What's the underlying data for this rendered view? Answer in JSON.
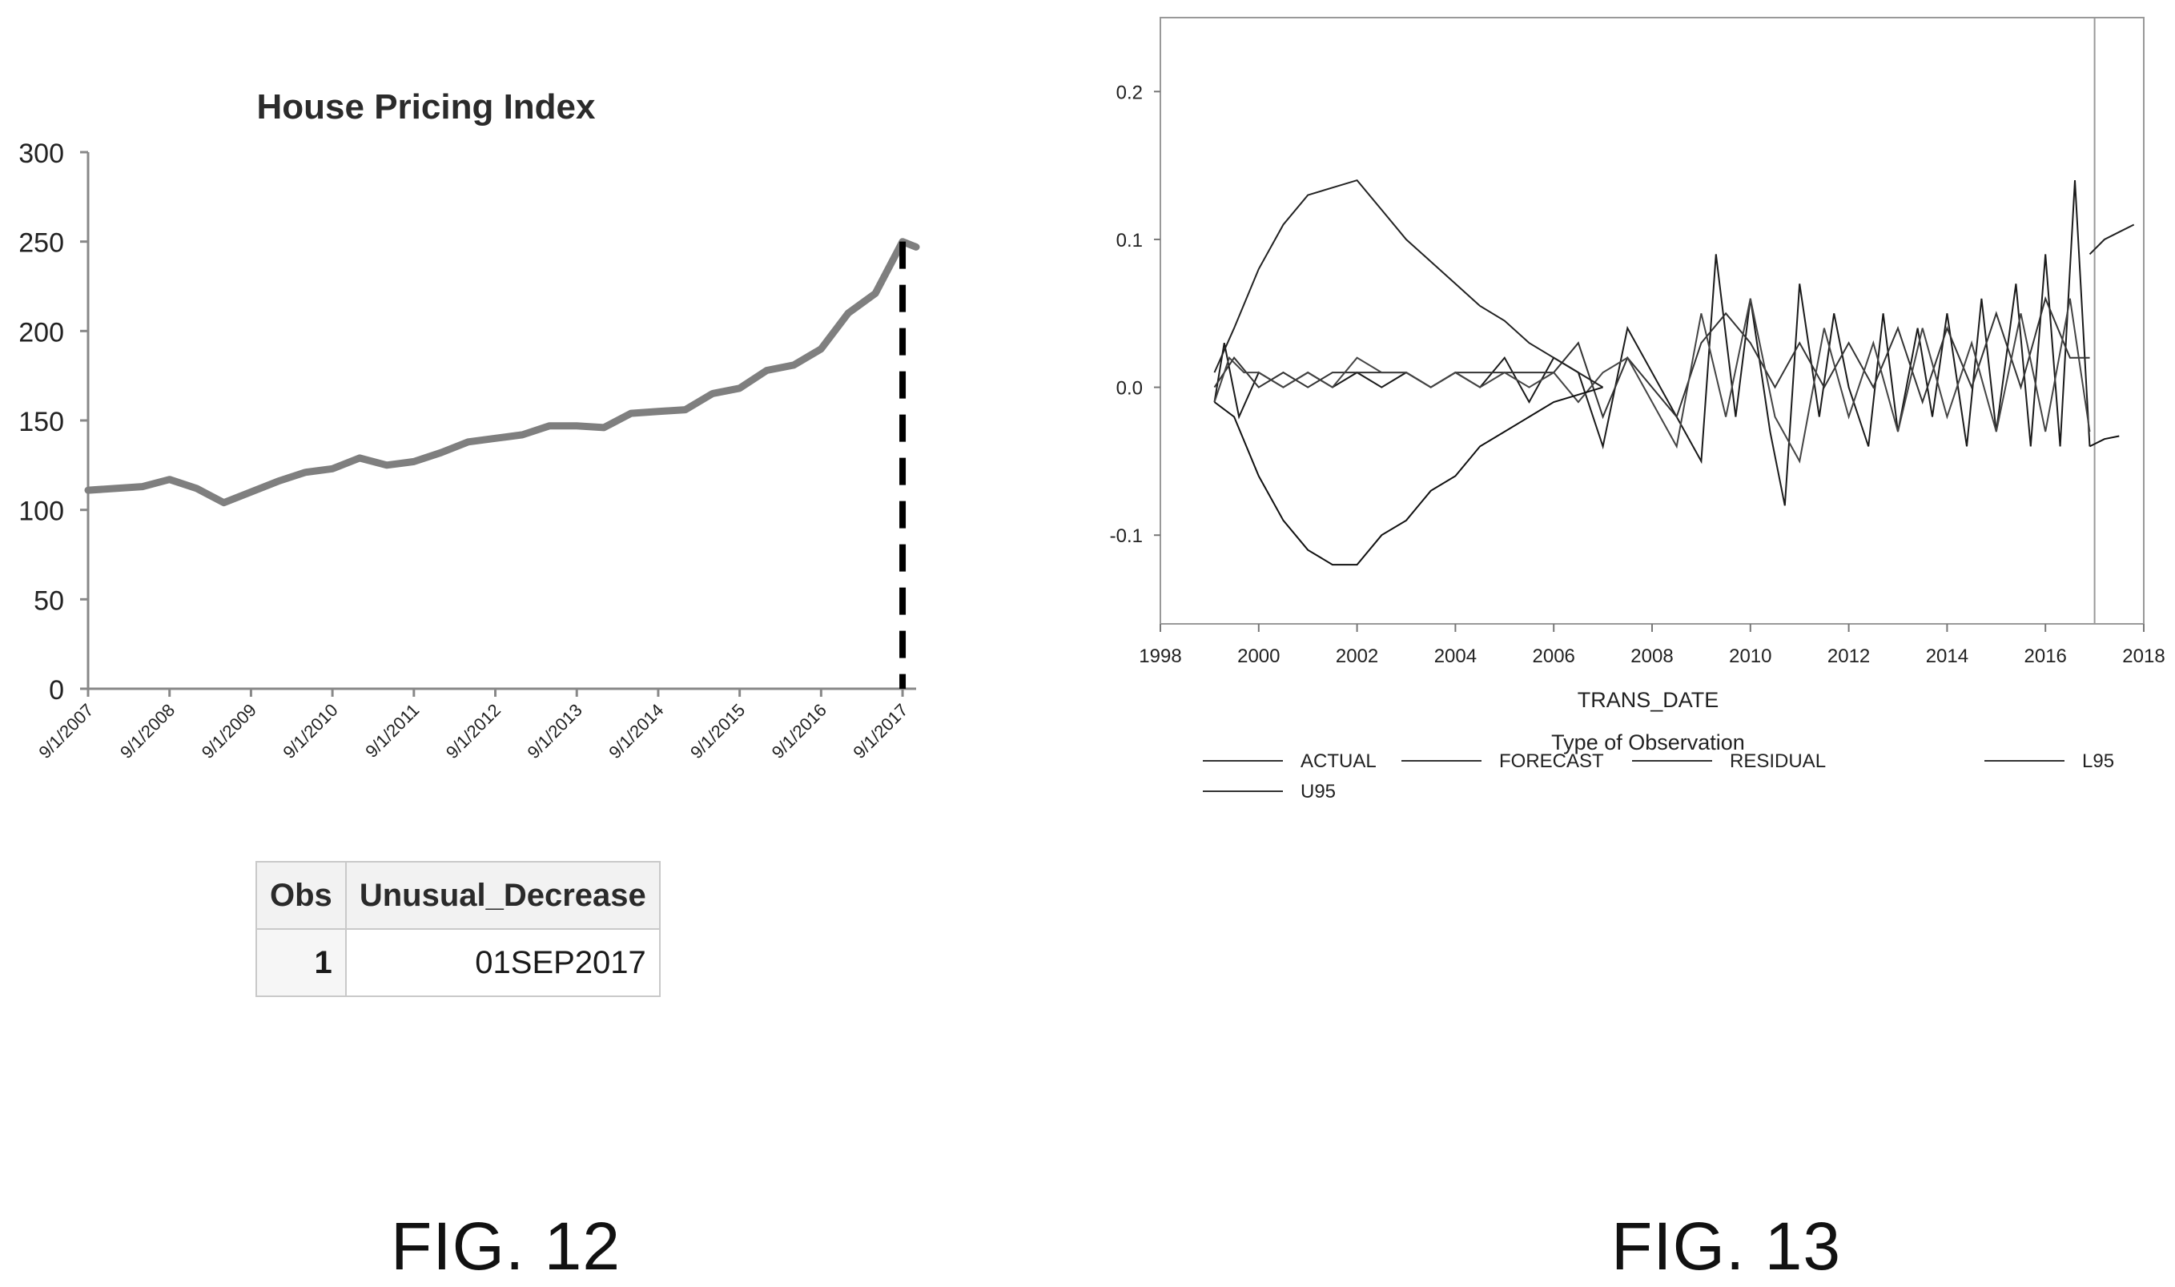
{
  "figures": {
    "fig12_caption": "FIG. 12",
    "fig13_caption": "FIG. 13"
  },
  "table": {
    "headers": [
      "Obs",
      "Unusual_Decrease"
    ],
    "rows": [
      [
        "1",
        "01SEP2017"
      ]
    ]
  },
  "chart_data": [
    {
      "type": "line",
      "title": "House Pricing Index",
      "xlabel": "",
      "ylabel": "",
      "ylim": [
        0,
        300
      ],
      "yticks": [
        "0",
        "50",
        "100",
        "150",
        "200",
        "250",
        "300"
      ],
      "xticks": [
        "9/1/2007",
        "9/1/2008",
        "9/1/2009",
        "9/1/2010",
        "9/1/2011",
        "9/1/2012",
        "9/1/2013",
        "9/1/2014",
        "9/1/2015",
        "9/1/2016",
        "9/1/2017"
      ],
      "x_range": [
        "2007-09-01",
        "2017-11-01"
      ],
      "marker": {
        "x": "2017-09-01",
        "style": "dashed",
        "color": "#000000"
      },
      "line_color": "#7f7f7f",
      "series": [
        {
          "x": [
            "2007-09",
            "2008-01",
            "2008-05",
            "2008-09",
            "2009-01",
            "2009-05",
            "2009-09",
            "2010-01",
            "2010-05",
            "2010-09",
            "2011-01",
            "2011-05",
            "2011-09",
            "2012-01",
            "2012-05",
            "2012-09",
            "2013-01",
            "2013-05",
            "2013-09",
            "2014-01",
            "2014-05",
            "2014-09",
            "2015-01",
            "2015-05",
            "2015-09",
            "2016-01",
            "2016-05",
            "2016-09",
            "2017-01",
            "2017-05",
            "2017-09",
            "2017-11"
          ],
          "values": [
            111,
            112,
            113,
            117,
            112,
            104,
            110,
            116,
            121,
            123,
            129,
            125,
            127,
            132,
            138,
            140,
            142,
            147,
            147,
            146,
            154,
            155,
            156,
            165,
            168,
            178,
            181,
            190,
            210,
            221,
            250,
            247
          ]
        }
      ]
    },
    {
      "type": "line",
      "title": "",
      "xlabel": "TRANS_DATE",
      "ylabel": "",
      "xlim": [
        1998,
        2018
      ],
      "ylim": [
        -0.16,
        0.25
      ],
      "xticks": [
        "1998",
        "2000",
        "2002",
        "2004",
        "2006",
        "2008",
        "2010",
        "2012",
        "2014",
        "2016",
        "2018"
      ],
      "yticks": [
        "-0.1",
        "0.0",
        "0.1",
        "0.2"
      ],
      "forecast_start": 2017.0,
      "legend_title": "Type of Observation",
      "legend_position": "bottom",
      "series": [
        {
          "name": "ACTUAL",
          "x": [
            1999.1,
            1999.3,
            1999.6,
            2000.0,
            2000.5,
            2001.0,
            2001.5,
            2002.0,
            2002.5,
            2003.0,
            2003.5,
            2004.0,
            2004.5,
            2005.0,
            2005.5,
            2006.0,
            2006.5,
            2007.0,
            2007.5,
            2008.0,
            2008.5,
            2009.0,
            2009.3,
            2009.7,
            2010.0,
            2010.4,
            2010.7,
            2011.0,
            2011.4,
            2011.7,
            2012.0,
            2012.4,
            2012.7,
            2013.0,
            2013.4,
            2013.7,
            2014.0,
            2014.4,
            2014.7,
            2015.0,
            2015.4,
            2015.7,
            2016.0,
            2016.3,
            2016.6,
            2016.9
          ],
          "values": [
            -0.01,
            0.03,
            -0.02,
            0.01,
            0.0,
            0.01,
            0.0,
            0.01,
            0.0,
            0.01,
            0.0,
            0.01,
            0.0,
            0.02,
            -0.01,
            0.02,
            0.01,
            -0.04,
            0.04,
            0.01,
            -0.02,
            -0.05,
            0.09,
            -0.02,
            0.06,
            -0.03,
            -0.08,
            0.07,
            -0.02,
            0.05,
            0.0,
            -0.04,
            0.05,
            -0.03,
            0.04,
            -0.02,
            0.05,
            -0.04,
            0.06,
            -0.03,
            0.07,
            -0.04,
            0.09,
            -0.04,
            0.14,
            -0.04
          ]
        },
        {
          "name": "FORECAST",
          "x": [
            1999.1,
            1999.5,
            2000.0,
            2000.5,
            2001.0,
            2001.5,
            2002.0,
            2002.5,
            2003.0,
            2003.5,
            2004.0,
            2004.5,
            2005.0,
            2005.5,
            2006.0,
            2006.5,
            2007.0,
            2007.5,
            2008.0,
            2008.5,
            2009.0,
            2009.5,
            2010.0,
            2010.5,
            2011.0,
            2011.5,
            2012.0,
            2012.5,
            2013.0,
            2013.5,
            2014.0,
            2014.5,
            2015.0,
            2015.5,
            2016.0,
            2016.5,
            2016.9
          ],
          "values": [
            0.0,
            0.02,
            0.0,
            0.01,
            0.0,
            0.01,
            0.01,
            0.01,
            0.01,
            0.0,
            0.01,
            0.01,
            0.01,
            0.01,
            0.01,
            0.03,
            -0.02,
            0.02,
            0.0,
            -0.02,
            0.03,
            0.05,
            0.03,
            0.0,
            0.03,
            0.0,
            0.03,
            0.0,
            0.04,
            -0.01,
            0.04,
            0.0,
            0.05,
            0.0,
            0.06,
            0.02,
            0.02
          ]
        },
        {
          "name": "RESIDUAL",
          "x": [
            1999.1,
            1999.4,
            1999.7,
            2000.0,
            2000.5,
            2001.0,
            2001.5,
            2002.0,
            2002.5,
            2003.0,
            2003.5,
            2004.0,
            2004.5,
            2005.0,
            2005.5,
            2006.0,
            2006.5,
            2007.0,
            2007.5,
            2008.0,
            2008.5,
            2009.0,
            2009.5,
            2010.0,
            2010.5,
            2011.0,
            2011.5,
            2012.0,
            2012.5,
            2013.0,
            2013.5,
            2014.0,
            2014.5,
            2015.0,
            2015.5,
            2016.0,
            2016.5,
            2016.9
          ],
          "values": [
            -0.01,
            0.02,
            0.01,
            0.01,
            0.0,
            0.01,
            0.0,
            0.02,
            0.01,
            0.01,
            0.0,
            0.01,
            0.0,
            0.01,
            0.0,
            0.01,
            -0.01,
            0.01,
            0.02,
            -0.01,
            -0.04,
            0.05,
            -0.02,
            0.06,
            -0.02,
            -0.05,
            0.04,
            -0.02,
            0.03,
            -0.03,
            0.04,
            -0.02,
            0.03,
            -0.03,
            0.05,
            -0.03,
            0.06,
            -0.03
          ]
        },
        {
          "name": "L95",
          "x": [
            1999.1,
            1999.5,
            2000.0,
            2000.5,
            2001.0,
            2001.5,
            2002.0,
            2002.5,
            2003.0,
            2003.5,
            2004.0,
            2004.5,
            2005.0,
            2005.5,
            2006.0,
            2006.5,
            2007.0,
            2016.9,
            2017.2,
            2017.5
          ],
          "values": [
            -0.01,
            -0.02,
            -0.06,
            -0.09,
            -0.11,
            -0.12,
            -0.12,
            -0.1,
            -0.09,
            -0.07,
            -0.06,
            -0.04,
            -0.03,
            -0.02,
            -0.01,
            -0.005,
            0.0,
            -0.04,
            -0.035,
            -0.033
          ]
        },
        {
          "name": "U95",
          "x": [
            1999.1,
            1999.5,
            2000.0,
            2000.5,
            2001.0,
            2001.5,
            2002.0,
            2002.5,
            2003.0,
            2003.5,
            2004.0,
            2004.5,
            2005.0,
            2005.5,
            2006.0,
            2006.5,
            2007.0,
            2016.9,
            2017.2,
            2017.5,
            2017.8
          ],
          "values": [
            0.01,
            0.04,
            0.08,
            0.11,
            0.13,
            0.135,
            0.14,
            0.12,
            0.1,
            0.085,
            0.07,
            0.055,
            0.045,
            0.03,
            0.02,
            0.01,
            0.0,
            0.09,
            0.1,
            0.105,
            0.11
          ]
        }
      ]
    }
  ]
}
